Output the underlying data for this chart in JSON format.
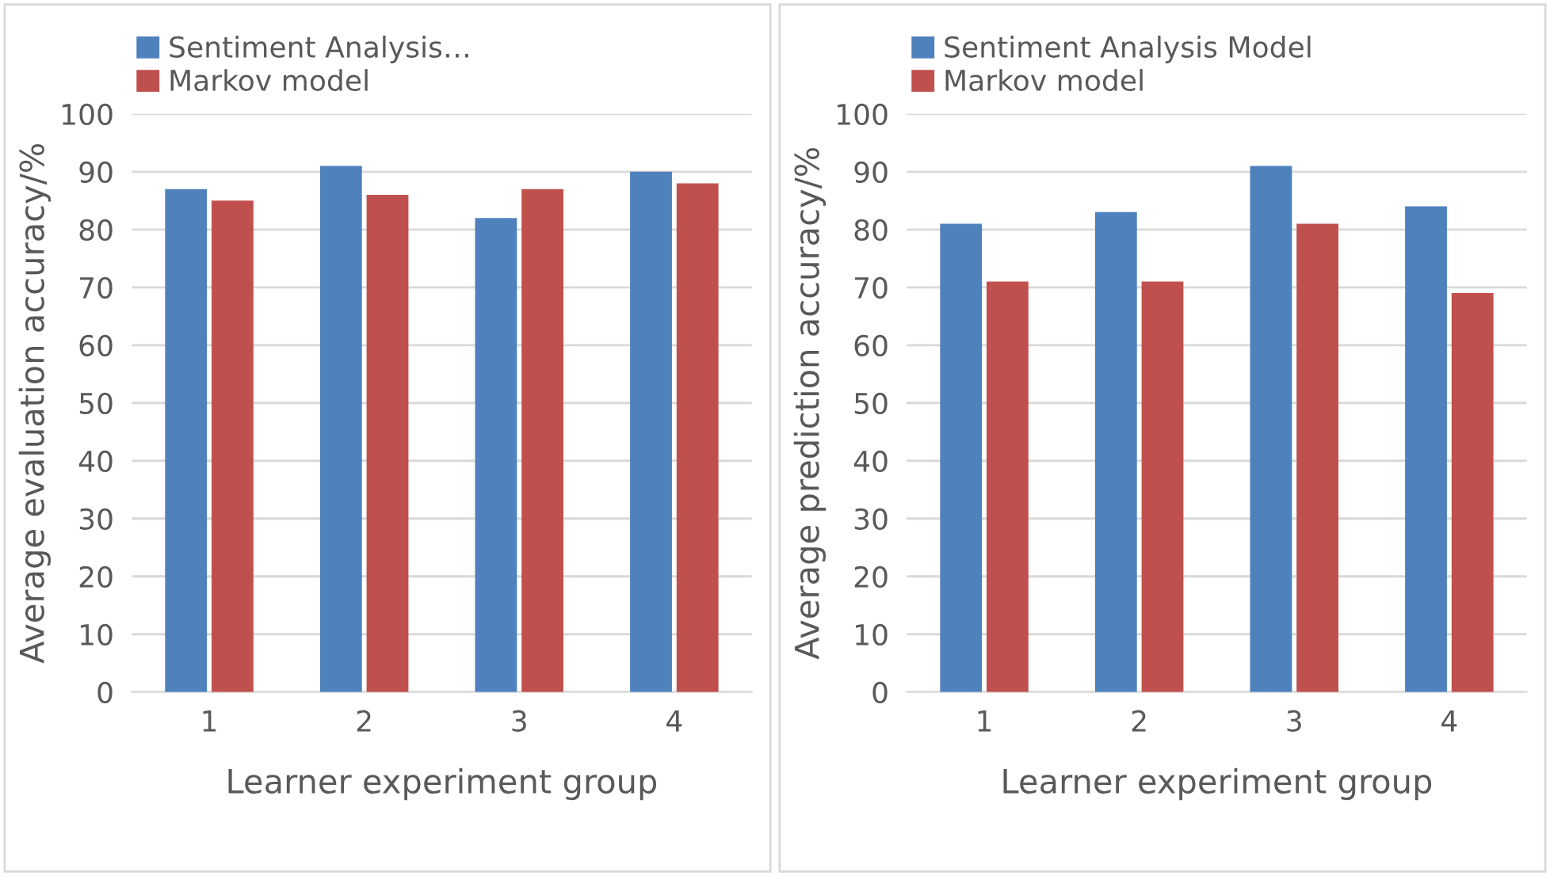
{
  "chart_data": [
    {
      "type": "bar",
      "xlabel": "Learner experiment group",
      "ylabel": "Average evaluation accuracy/%",
      "categories": [
        "1",
        "2",
        "3",
        "4"
      ],
      "series": [
        {
          "name": "Sentiment Analysis…",
          "color": "#4f81bd",
          "values": [
            87,
            91,
            82,
            90
          ]
        },
        {
          "name": "Markov model",
          "color": "#c0504d",
          "values": [
            85,
            86,
            87,
            88
          ]
        }
      ],
      "ylim": [
        0,
        100
      ],
      "yticks": [
        0,
        10,
        20,
        30,
        40,
        50,
        60,
        70,
        80,
        90,
        100
      ],
      "grid": "y",
      "legend": "top left"
    },
    {
      "type": "bar",
      "xlabel": "Learner experiment group",
      "ylabel": "Average prediction accuracy/%",
      "categories": [
        "1",
        "2",
        "3",
        "4"
      ],
      "series": [
        {
          "name": "Sentiment Analysis Model",
          "color": "#4f81bd",
          "values": [
            81,
            83,
            91,
            84
          ]
        },
        {
          "name": "Markov model",
          "color": "#c0504d",
          "values": [
            71,
            71,
            81,
            69
          ]
        }
      ],
      "ylim": [
        0,
        100
      ],
      "yticks": [
        0,
        10,
        20,
        30,
        40,
        50,
        60,
        70,
        80,
        90,
        100
      ],
      "grid": "y",
      "legend": "top left"
    }
  ]
}
